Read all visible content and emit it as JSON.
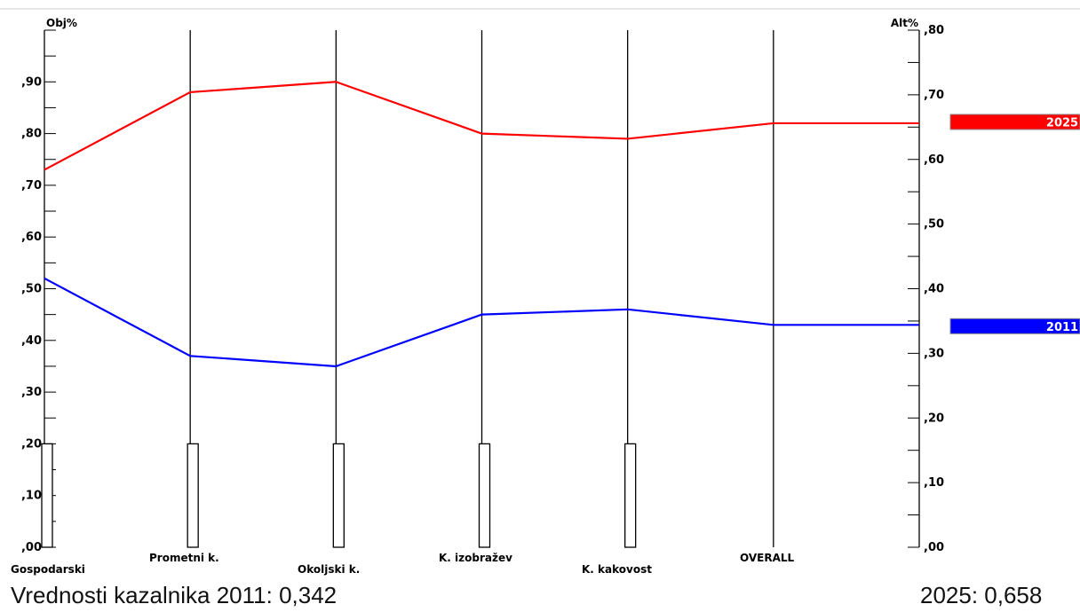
{
  "chart_data": {
    "type": "line",
    "left_axis_title": "Obj%",
    "right_axis_title": "Alt%",
    "categories": [
      "Gospodarski",
      "Prometni k.",
      "Okoljski k.",
      "K. izobražev",
      "K. kakovost",
      "OVERALL"
    ],
    "left_axis": {
      "ylim": [
        0,
        1.0
      ],
      "ticks": [
        0.0,
        0.1,
        0.2,
        0.3,
        0.4,
        0.5,
        0.6,
        0.7,
        0.8,
        0.9
      ],
      "tick_labels": [
        ",00",
        ",10",
        ",20",
        ",30",
        ",40",
        ",50",
        ",60",
        ",70",
        ",80",
        ",90"
      ]
    },
    "right_axis": {
      "ylim": [
        0,
        0.8
      ],
      "ticks": [
        0.0,
        0.1,
        0.2,
        0.3,
        0.4,
        0.5,
        0.6,
        0.7,
        0.8
      ],
      "tick_labels": [
        ",00",
        ",10",
        ",20",
        ",30",
        ",40",
        ",50",
        ",60",
        ",70",
        ",80"
      ]
    },
    "weight_bars": {
      "categories": [
        "Gospodarski",
        "Prometni k.",
        "Okoljski k.",
        "K. izobražev",
        "K. kakovost"
      ],
      "values": [
        0.2,
        0.2,
        0.2,
        0.2,
        0.2
      ]
    },
    "series": [
      {
        "name": "2025",
        "color": "#ff0000",
        "values": [
          0.73,
          0.88,
          0.9,
          0.8,
          0.79,
          0.82
        ],
        "overall_value": 0.658
      },
      {
        "name": "2011",
        "color": "#0000ff",
        "values": [
          0.52,
          0.37,
          0.35,
          0.45,
          0.46,
          0.43
        ],
        "overall_value": 0.342
      }
    ],
    "grid": "vertical"
  },
  "footer": {
    "left": "Vrednosti kazalnika 2011: 0,342",
    "right": "2025: 0,658"
  }
}
